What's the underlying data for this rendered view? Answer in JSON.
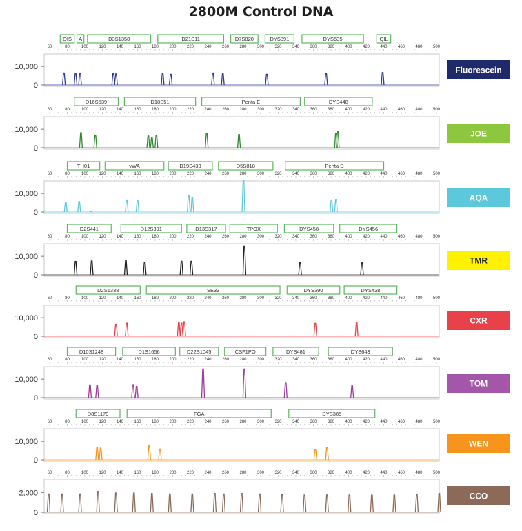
{
  "title": "2800M Control DNA",
  "chart_data": {
    "type": "line",
    "title": "2800M Control DNA",
    "x_ticks": [
      60,
      80,
      100,
      120,
      140,
      160,
      180,
      200,
      220,
      240,
      260,
      280,
      300,
      320,
      340,
      360,
      380,
      400,
      420,
      440,
      460,
      480,
      500
    ],
    "xlim": [
      60,
      500
    ],
    "panels": [
      {
        "dye": "Fluorescein",
        "color": "#2b3990",
        "label_bg": "#1f2a6b",
        "label_fg": "#ffffff",
        "yticks": [
          "10,000",
          "0"
        ],
        "ylim": [
          0,
          16000
        ],
        "loci": [
          {
            "name": "QIS",
            "start": 72,
            "end": 88
          },
          {
            "name": "A",
            "start": 91,
            "end": 99
          },
          {
            "name": "D3S1358",
            "start": 103,
            "end": 175
          },
          {
            "name": "D21S11",
            "start": 183,
            "end": 258
          },
          {
            "name": "D7S820",
            "start": 266,
            "end": 297
          },
          {
            "name": "DYS391",
            "start": 305,
            "end": 338
          },
          {
            "name": "DYS635",
            "start": 347,
            "end": 417
          },
          {
            "name": "QIL",
            "start": 432,
            "end": 448
          }
        ],
        "peaks": [
          {
            "x": 82,
            "y": 6500
          },
          {
            "x": 95,
            "y": 6300
          },
          {
            "x": 100,
            "y": 6400
          },
          {
            "x": 137,
            "y": 6300
          },
          {
            "x": 140,
            "y": 6000
          },
          {
            "x": 192,
            "y": 6200
          },
          {
            "x": 201,
            "y": 5800
          },
          {
            "x": 248,
            "y": 6500
          },
          {
            "x": 259,
            "y": 6200
          },
          {
            "x": 308,
            "y": 5800
          },
          {
            "x": 374,
            "y": 6200
          },
          {
            "x": 437,
            "y": 6800
          }
        ]
      },
      {
        "dye": "JOE",
        "color": "#2e8b2e",
        "label_bg": "#8dc63f",
        "label_fg": "#ffffff",
        "yticks": [
          "10,000",
          "0"
        ],
        "ylim": [
          0,
          16000
        ],
        "loci": [
          {
            "name": "D16S539",
            "start": 88,
            "end": 138
          },
          {
            "name": "D18S51",
            "start": 145,
            "end": 226
          },
          {
            "name": "Penta E",
            "start": 233,
            "end": 345
          },
          {
            "name": "DYS448",
            "start": 350,
            "end": 427
          }
        ],
        "peaks": [
          {
            "x": 101,
            "y": 8200
          },
          {
            "x": 117,
            "y": 6800
          },
          {
            "x": 176,
            "y": 6400
          },
          {
            "x": 180,
            "y": 5500
          },
          {
            "x": 185,
            "y": 6700
          },
          {
            "x": 241,
            "y": 7700
          },
          {
            "x": 277,
            "y": 7200
          },
          {
            "x": 385,
            "y": 7700
          },
          {
            "x": 387,
            "y": 8800
          }
        ]
      },
      {
        "dye": "AQA",
        "color": "#5bc8dc",
        "label_bg": "#5bc8dc",
        "label_fg": "#ffffff",
        "yticks": [
          "10,000",
          "0"
        ],
        "ylim": [
          0,
          16000
        ],
        "loci": [
          {
            "name": "TH01",
            "start": 80,
            "end": 117
          },
          {
            "name": "vWA",
            "start": 123,
            "end": 190
          },
          {
            "name": "D19S433",
            "start": 195,
            "end": 245
          },
          {
            "name": "D5S818",
            "start": 252,
            "end": 314
          },
          {
            "name": "Penta D",
            "start": 328,
            "end": 440
          }
        ],
        "peaks": [
          {
            "x": 84,
            "y": 5200
          },
          {
            "x": 99,
            "y": 5600
          },
          {
            "x": 112,
            "y": 400
          },
          {
            "x": 152,
            "y": 6500
          },
          {
            "x": 164,
            "y": 6100
          },
          {
            "x": 221,
            "y": 9000
          },
          {
            "x": 225,
            "y": 7600
          },
          {
            "x": 282,
            "y": 17000
          },
          {
            "x": 380,
            "y": 6500
          },
          {
            "x": 385,
            "y": 6800
          }
        ]
      },
      {
        "dye": "TMR",
        "color": "#222222",
        "label_bg": "#fff200",
        "label_fg": "#222222",
        "yticks": [
          "10,000",
          "0"
        ],
        "ylim": [
          0,
          16000
        ],
        "loci": [
          {
            "name": "D2S441",
            "start": 80,
            "end": 130
          },
          {
            "name": "D12S391",
            "start": 141,
            "end": 210
          },
          {
            "name": "D13S317",
            "start": 216,
            "end": 260
          },
          {
            "name": "TPOX",
            "start": 265,
            "end": 319
          },
          {
            "name": "DYS458",
            "start": 327,
            "end": 383
          },
          {
            "name": "DYS456",
            "start": 390,
            "end": 455
          }
        ],
        "peaks": [
          {
            "x": 95,
            "y": 7200
          },
          {
            "x": 113,
            "y": 7500
          },
          {
            "x": 151,
            "y": 7600
          },
          {
            "x": 172,
            "y": 6700
          },
          {
            "x": 213,
            "y": 7300
          },
          {
            "x": 224,
            "y": 7300
          },
          {
            "x": 283,
            "y": 15500
          },
          {
            "x": 345,
            "y": 6800
          },
          {
            "x": 414,
            "y": 6400
          }
        ]
      },
      {
        "dye": "CXR",
        "color": "#e8414a",
        "label_bg": "#e8414a",
        "label_fg": "#ffffff",
        "yticks": [
          "10,000",
          "0"
        ],
        "ylim": [
          0,
          16000
        ],
        "loci": [
          {
            "name": "D2S1338",
            "start": 90,
            "end": 163
          },
          {
            "name": "SE33",
            "start": 170,
            "end": 322
          },
          {
            "name": "DYS390",
            "start": 330,
            "end": 390
          },
          {
            "name": "DYS438",
            "start": 395,
            "end": 455
          }
        ],
        "peaks": [
          {
            "x": 140,
            "y": 6500
          },
          {
            "x": 152,
            "y": 7000
          },
          {
            "x": 210,
            "y": 7500
          },
          {
            "x": 213,
            "y": 7000
          },
          {
            "x": 216,
            "y": 7800
          },
          {
            "x": 362,
            "y": 6900
          },
          {
            "x": 408,
            "y": 7300
          }
        ]
      },
      {
        "dye": "TOM",
        "color": "#9b3b9e",
        "label_bg": "#a456a8",
        "label_fg": "#ffffff",
        "yticks": [
          "10,000",
          "0"
        ],
        "ylim": [
          0,
          16000
        ],
        "loci": [
          {
            "name": "D10S1248",
            "start": 80,
            "end": 135
          },
          {
            "name": "D1S1656",
            "start": 143,
            "end": 203
          },
          {
            "name": "D22S1045",
            "start": 208,
            "end": 252
          },
          {
            "name": "CSF1PO",
            "start": 259,
            "end": 306
          },
          {
            "name": "DYS481",
            "start": 314,
            "end": 366
          },
          {
            "name": "DYS643",
            "start": 377,
            "end": 450
          }
        ],
        "peaks": [
          {
            "x": 111,
            "y": 6900
          },
          {
            "x": 119,
            "y": 6600
          },
          {
            "x": 159,
            "y": 7000
          },
          {
            "x": 163,
            "y": 6100
          },
          {
            "x": 237,
            "y": 15500
          },
          {
            "x": 283,
            "y": 15500
          },
          {
            "x": 329,
            "y": 8200
          },
          {
            "x": 403,
            "y": 6500
          }
        ]
      },
      {
        "dye": "WEN",
        "color": "#f7941d",
        "label_bg": "#f7941d",
        "label_fg": "#ffffff",
        "yticks": [
          "10,000",
          "0"
        ],
        "ylim": [
          0,
          16000
        ],
        "loci": [
          {
            "name": "D8S1179",
            "start": 90,
            "end": 140
          },
          {
            "name": "FGA",
            "start": 148,
            "end": 312
          },
          {
            "name": "DYS385",
            "start": 332,
            "end": 430
          }
        ],
        "peaks": [
          {
            "x": 119,
            "y": 6700
          },
          {
            "x": 123,
            "y": 6300
          },
          {
            "x": 177,
            "y": 7700
          },
          {
            "x": 189,
            "y": 5800
          },
          {
            "x": 362,
            "y": 5700
          },
          {
            "x": 375,
            "y": 6800
          }
        ]
      },
      {
        "dye": "CCO",
        "color": "#8b6a5a",
        "label_bg": "#8b6a5a",
        "label_fg": "#ffffff",
        "yticks": [
          "2,000",
          "0"
        ],
        "ylim": [
          0,
          3200
        ],
        "loci": [],
        "peaks": [
          {
            "x": 65,
            "y": 1850
          },
          {
            "x": 80,
            "y": 1850
          },
          {
            "x": 100,
            "y": 1850
          },
          {
            "x": 120,
            "y": 2100
          },
          {
            "x": 140,
            "y": 1950
          },
          {
            "x": 160,
            "y": 1950
          },
          {
            "x": 180,
            "y": 1900
          },
          {
            "x": 200,
            "y": 1850
          },
          {
            "x": 225,
            "y": 1850
          },
          {
            "x": 250,
            "y": 1900
          },
          {
            "x": 260,
            "y": 1850
          },
          {
            "x": 280,
            "y": 1900
          },
          {
            "x": 300,
            "y": 1850
          },
          {
            "x": 325,
            "y": 1800
          },
          {
            "x": 350,
            "y": 1750
          },
          {
            "x": 375,
            "y": 1750
          },
          {
            "x": 400,
            "y": 1750
          },
          {
            "x": 425,
            "y": 1750
          },
          {
            "x": 450,
            "y": 1750
          },
          {
            "x": 475,
            "y": 1800
          },
          {
            "x": 500,
            "y": 1900
          }
        ]
      }
    ]
  }
}
